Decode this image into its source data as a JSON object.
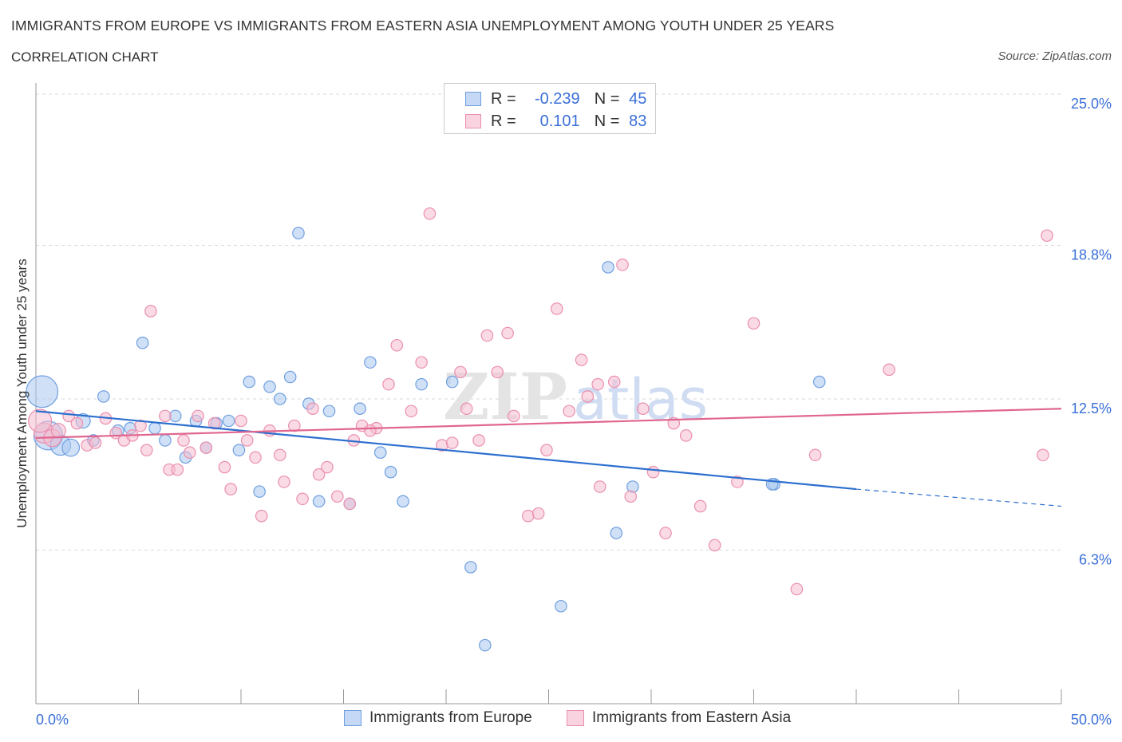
{
  "header": {
    "title": "IMMIGRANTS FROM EUROPE VS IMMIGRANTS FROM EASTERN ASIA UNEMPLOYMENT AMONG YOUTH UNDER 25 YEARS",
    "subtitle": "CORRELATION CHART",
    "source": "Source: ZipAtlas.com"
  },
  "legend": {
    "r_label": "R =",
    "n_label": "N =",
    "europe": {
      "r": "-0.239",
      "n": "45"
    },
    "asia": {
      "r": "0.101",
      "n": "83"
    }
  },
  "colors": {
    "europe_fill": "#aac8f0",
    "europe_stroke": "#6f9fe0",
    "europe_line": "#2d6fcf",
    "asia_fill": "#f6bdd0",
    "asia_stroke": "#eb8fae",
    "asia_line": "#e0668f",
    "tick_text": "#3a6fd8",
    "grid": "#d9d9d9"
  },
  "chart_data": {
    "type": "scatter",
    "title": "IMMIGRANTS FROM EUROPE VS IMMIGRANTS FROM EASTERN ASIA UNEMPLOYMENT AMONG YOUTH UNDER 25 YEARS",
    "xlabel": "",
    "ylabel": "Unemployment Among Youth under 25 years",
    "xlim": [
      0,
      50
    ],
    "ylim": [
      0,
      25
    ],
    "x_tick_labels": [
      "0.0%",
      "50.0%"
    ],
    "y_ticks": [
      6.3,
      12.5,
      18.8,
      25.0
    ],
    "y_tick_labels": [
      "6.3%",
      "12.5%",
      "18.8%",
      "25.0%"
    ],
    "grid": true,
    "legend_position": "bottom",
    "watermark": "ZIPatlas",
    "series": [
      {
        "name": "Immigrants from Europe",
        "r": -0.239,
        "n": 45,
        "trend": {
          "x0": 0,
          "y0": 12.0,
          "x1": 40,
          "y1": 8.8,
          "dash_to_x": 50,
          "dash_to_y": 8.1
        },
        "points": [
          [
            0.3,
            12.8,
            2.2
          ],
          [
            0.6,
            11.0,
            2.0
          ],
          [
            1.2,
            10.6,
            1.4
          ],
          [
            1.7,
            10.5,
            1.2
          ],
          [
            2.3,
            11.6,
            1.0
          ],
          [
            2.8,
            10.8,
            0.8
          ],
          [
            3.3,
            12.6,
            0.8
          ],
          [
            4.0,
            11.2,
            0.8
          ],
          [
            4.6,
            11.3,
            0.8
          ],
          [
            5.2,
            14.8,
            0.8
          ],
          [
            5.8,
            11.3,
            0.8
          ],
          [
            6.3,
            10.8,
            0.8
          ],
          [
            6.8,
            11.8,
            0.8
          ],
          [
            7.3,
            10.1,
            0.8
          ],
          [
            7.8,
            11.6,
            0.8
          ],
          [
            8.3,
            10.5,
            0.8
          ],
          [
            8.8,
            11.5,
            0.8
          ],
          [
            9.4,
            11.6,
            0.8
          ],
          [
            9.9,
            10.4,
            0.8
          ],
          [
            10.4,
            13.2,
            0.8
          ],
          [
            10.9,
            8.7,
            0.8
          ],
          [
            11.4,
            13.0,
            0.8
          ],
          [
            11.9,
            12.5,
            0.8
          ],
          [
            12.4,
            13.4,
            0.8
          ],
          [
            12.8,
            19.3,
            0.8
          ],
          [
            13.3,
            12.3,
            0.8
          ],
          [
            13.8,
            8.3,
            0.8
          ],
          [
            14.3,
            12.0,
            0.8
          ],
          [
            15.3,
            8.2,
            0.8
          ],
          [
            15.8,
            12.1,
            0.8
          ],
          [
            16.3,
            14.0,
            0.8
          ],
          [
            16.8,
            10.3,
            0.8
          ],
          [
            17.3,
            9.5,
            0.8
          ],
          [
            17.9,
            8.3,
            0.8
          ],
          [
            18.8,
            13.1,
            0.8
          ],
          [
            20.3,
            13.2,
            0.8
          ],
          [
            21.2,
            5.6,
            0.8
          ],
          [
            21.9,
            2.4,
            0.8
          ],
          [
            25.6,
            4.0,
            0.8
          ],
          [
            27.9,
            17.9,
            0.8
          ],
          [
            28.3,
            7.0,
            0.8
          ],
          [
            29.1,
            8.9,
            0.8
          ],
          [
            36.0,
            9.0,
            0.8
          ],
          [
            35.9,
            9.0,
            0.8
          ],
          [
            38.2,
            13.2,
            0.8
          ]
        ]
      },
      {
        "name": "Immigrants from Eastern Asia",
        "r": 0.101,
        "n": 83,
        "trend": {
          "x0": 0,
          "y0": 10.9,
          "x1": 50,
          "y1": 12.1
        },
        "points": [
          [
            0.4,
            11.1,
            1.4
          ],
          [
            0.8,
            10.9,
            1.2
          ],
          [
            1.1,
            11.2,
            1.0
          ],
          [
            1.6,
            11.8,
            0.8
          ],
          [
            2.0,
            11.5,
            0.8
          ],
          [
            2.5,
            10.6,
            0.8
          ],
          [
            2.9,
            10.7,
            0.8
          ],
          [
            3.4,
            11.7,
            0.8
          ],
          [
            3.9,
            11.1,
            0.8
          ],
          [
            4.3,
            10.8,
            0.8
          ],
          [
            4.7,
            11.0,
            0.8
          ],
          [
            5.1,
            11.4,
            0.8
          ],
          [
            5.4,
            10.4,
            0.8
          ],
          [
            5.6,
            16.1,
            0.8
          ],
          [
            6.3,
            11.8,
            0.8
          ],
          [
            6.5,
            9.6,
            0.8
          ],
          [
            6.9,
            9.6,
            0.8
          ],
          [
            7.2,
            10.8,
            0.8
          ],
          [
            7.5,
            10.3,
            0.8
          ],
          [
            7.9,
            11.8,
            0.8
          ],
          [
            8.3,
            10.5,
            0.8
          ],
          [
            8.7,
            11.5,
            0.8
          ],
          [
            9.2,
            9.7,
            0.8
          ],
          [
            9.5,
            8.8,
            0.8
          ],
          [
            10.0,
            11.6,
            0.8
          ],
          [
            10.3,
            10.8,
            0.8
          ],
          [
            10.7,
            10.1,
            0.8
          ],
          [
            11.0,
            7.7,
            0.8
          ],
          [
            11.4,
            11.2,
            0.8
          ],
          [
            11.9,
            10.2,
            0.8
          ],
          [
            12.1,
            9.1,
            0.8
          ],
          [
            12.6,
            11.4,
            0.8
          ],
          [
            13.0,
            8.4,
            0.8
          ],
          [
            13.5,
            12.1,
            0.8
          ],
          [
            13.8,
            9.4,
            0.8
          ],
          [
            14.2,
            9.7,
            0.8
          ],
          [
            14.7,
            8.5,
            0.8
          ],
          [
            15.3,
            8.2,
            0.8
          ],
          [
            15.5,
            10.8,
            0.8
          ],
          [
            15.9,
            11.4,
            0.8
          ],
          [
            16.6,
            11.3,
            0.8
          ],
          [
            16.3,
            11.2,
            0.8
          ],
          [
            17.2,
            13.1,
            0.8
          ],
          [
            17.6,
            14.7,
            0.8
          ],
          [
            18.3,
            12.0,
            0.8
          ],
          [
            18.8,
            14.0,
            0.8
          ],
          [
            19.2,
            20.1,
            0.8
          ],
          [
            19.8,
            10.6,
            0.8
          ],
          [
            20.3,
            10.7,
            0.8
          ],
          [
            20.7,
            13.6,
            0.8
          ],
          [
            21.0,
            12.1,
            0.8
          ],
          [
            21.6,
            10.8,
            0.8
          ],
          [
            22.0,
            15.1,
            0.8
          ],
          [
            22.5,
            13.6,
            0.8
          ],
          [
            23.0,
            15.2,
            0.8
          ],
          [
            23.3,
            11.8,
            0.8
          ],
          [
            24.0,
            7.7,
            0.8
          ],
          [
            24.5,
            7.8,
            0.8
          ],
          [
            24.9,
            10.4,
            0.8
          ],
          [
            25.4,
            16.2,
            0.8
          ],
          [
            26.0,
            12.0,
            0.8
          ],
          [
            26.6,
            14.1,
            0.8
          ],
          [
            26.9,
            12.6,
            0.8
          ],
          [
            27.4,
            13.1,
            0.8
          ],
          [
            27.5,
            8.9,
            0.8
          ],
          [
            28.2,
            13.2,
            0.8
          ],
          [
            28.6,
            18.0,
            0.8
          ],
          [
            29.0,
            8.5,
            0.8
          ],
          [
            29.6,
            12.1,
            0.8
          ],
          [
            30.1,
            9.5,
            0.8
          ],
          [
            30.7,
            7.0,
            0.8
          ],
          [
            31.1,
            11.5,
            0.8
          ],
          [
            31.7,
            11.0,
            0.8
          ],
          [
            32.4,
            8.1,
            0.8
          ],
          [
            33.1,
            6.5,
            0.8
          ],
          [
            34.2,
            9.1,
            0.8
          ],
          [
            35.0,
            15.6,
            0.8
          ],
          [
            37.1,
            4.7,
            0.8
          ],
          [
            38.0,
            10.2,
            0.8
          ],
          [
            41.6,
            13.7,
            0.8
          ],
          [
            49.1,
            10.2,
            0.8
          ],
          [
            49.3,
            19.2,
            0.8
          ],
          [
            0.2,
            11.6,
            1.6
          ]
        ]
      }
    ]
  }
}
